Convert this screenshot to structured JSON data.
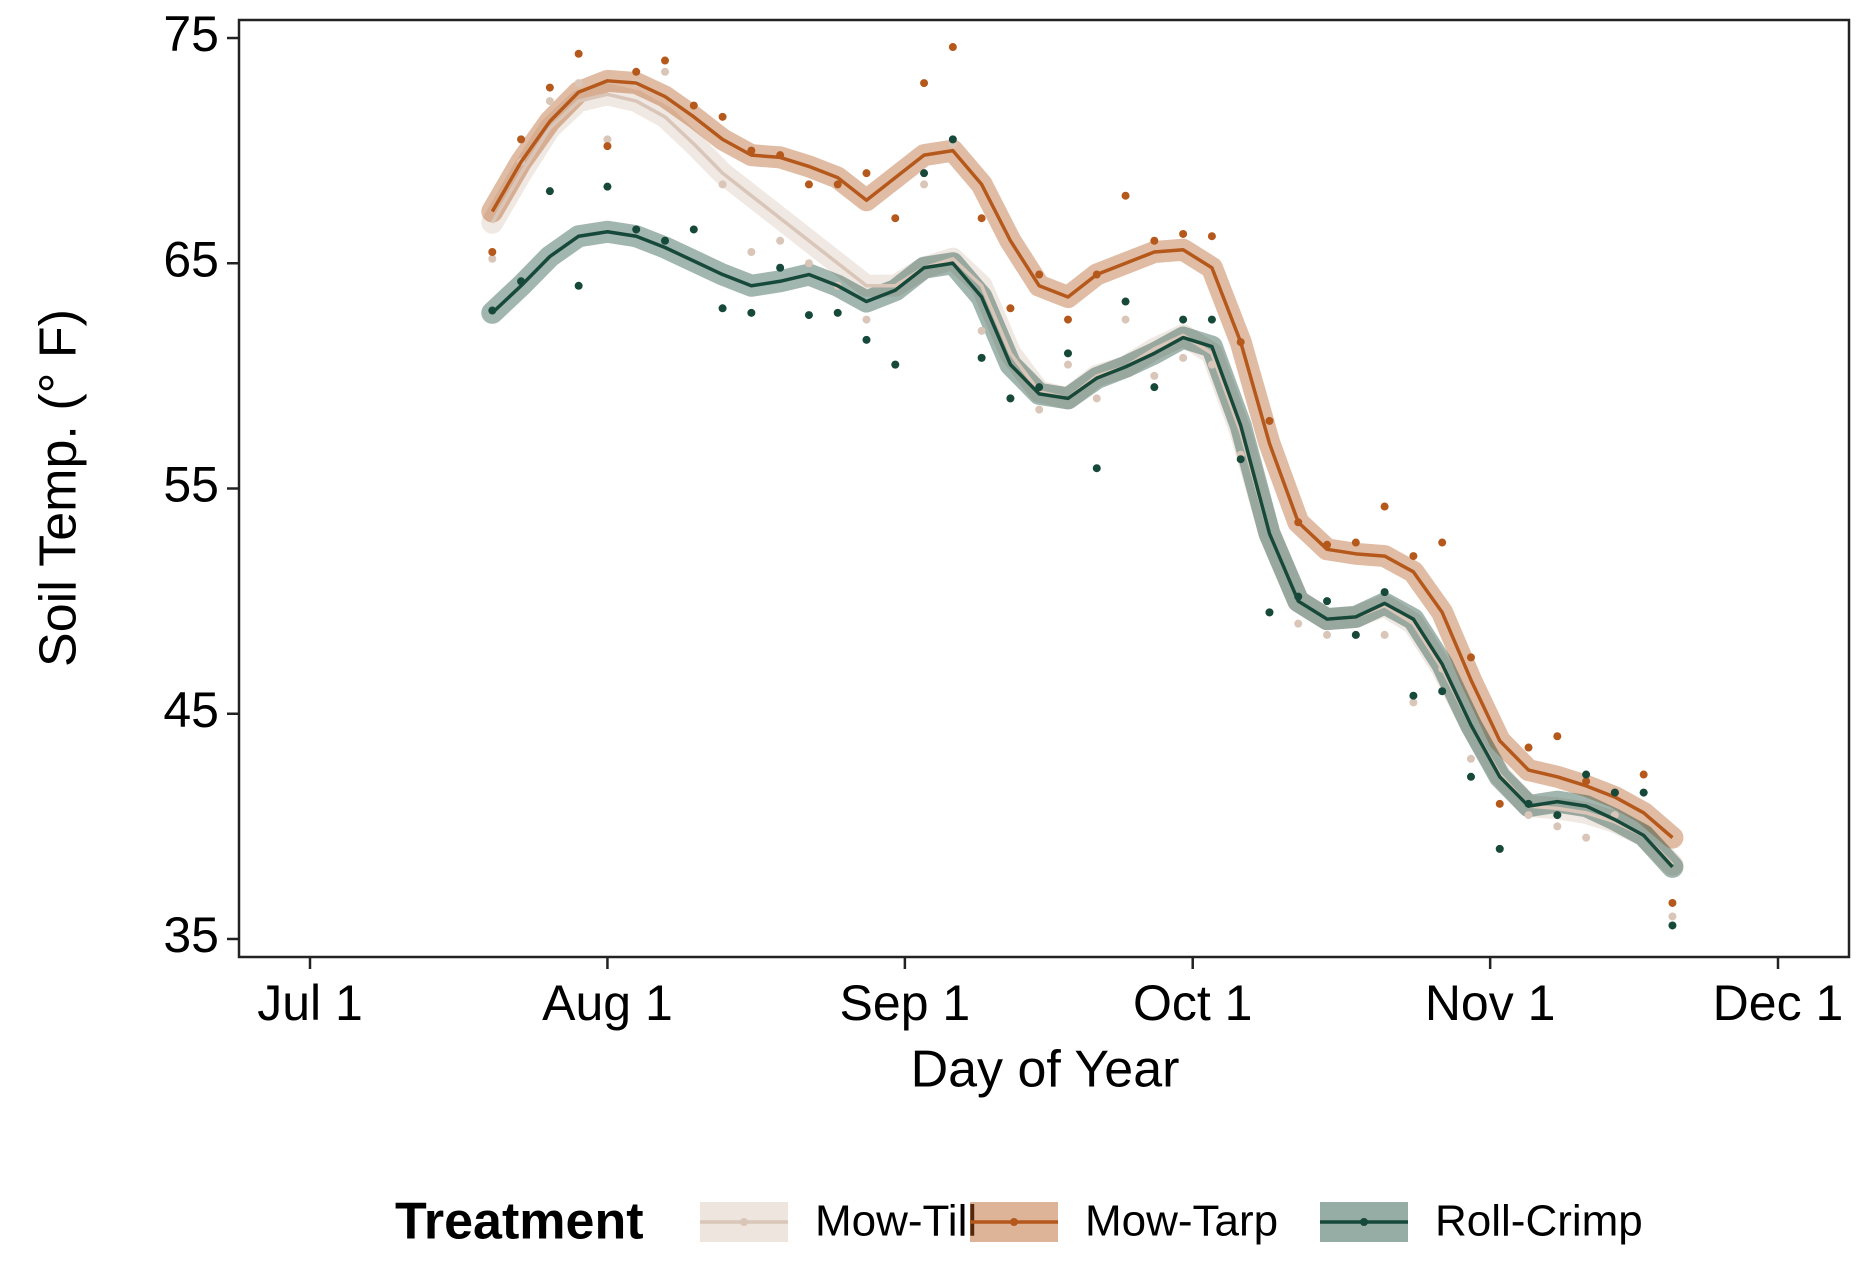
{
  "chart_data": {
    "type": "line",
    "xlabel": "Day of Year",
    "ylabel": "Soil Temp.  (° F)",
    "legend_title": "Treatment",
    "legend_position": "bottom",
    "xlim": [
      174.6,
      342.4
    ],
    "xticks": [
      {
        "value": 182,
        "label": "Jul 1"
      },
      {
        "value": 213,
        "label": "Aug 1"
      },
      {
        "value": 244,
        "label": "Sep 1"
      },
      {
        "value": 274,
        "label": "Oct 1"
      },
      {
        "value": 305,
        "label": "Nov 1"
      },
      {
        "value": 335,
        "label": "Dec 1"
      }
    ],
    "ylim": [
      34.2,
      75.8
    ],
    "yticks": [
      35,
      45,
      55,
      65,
      75
    ],
    "x": [
      201,
      204,
      207,
      210,
      213,
      216,
      219,
      222,
      225,
      228,
      231,
      234,
      237,
      240,
      243,
      246,
      249,
      252,
      255,
      258,
      261,
      264,
      267,
      270,
      273,
      276,
      279,
      282,
      285,
      288,
      291,
      294,
      297,
      300,
      303,
      306,
      309,
      312,
      315,
      318,
      321,
      324
    ],
    "series": [
      {
        "name": "Mow-Till",
        "color": "#d9c6b8",
        "values": [
          66.8,
          69,
          71,
          72.2,
          72.5,
          72.2,
          71.5,
          70.3,
          69,
          68,
          67,
          66,
          65,
          64,
          64,
          64.8,
          65.2,
          64,
          61,
          59.3,
          59,
          60,
          60.4,
          61.2,
          61.8,
          61,
          57.5,
          53,
          50,
          49.2,
          49.3,
          49.8,
          49,
          47,
          44.5,
          42.3,
          40.9,
          40.8,
          40.6,
          40.2,
          39.6,
          38.3
        ],
        "observed": [
          65.2,
          69.5,
          72.2,
          73,
          70.5,
          73,
          73.5,
          72,
          68.5,
          65.5,
          66,
          65,
          64,
          62.5,
          60.5,
          68.5,
          70.3,
          62,
          59,
          58.5,
          60.5,
          59,
          62.5,
          60,
          60.8,
          60.5,
          56.5,
          49.5,
          49,
          48.5,
          48.5,
          48.5,
          45.5,
          47,
          43,
          39,
          40.5,
          40,
          39.5,
          40.5,
          41.5,
          36
        ]
      },
      {
        "name": "Mow-Tarp",
        "color": "#b5581b",
        "values": [
          67.3,
          69.5,
          71.3,
          72.6,
          73.1,
          73,
          72.4,
          71.5,
          70.5,
          69.8,
          69.7,
          69.3,
          68.8,
          67.8,
          68.8,
          69.8,
          70,
          68.5,
          66,
          64,
          63.5,
          64.5,
          65,
          65.5,
          65.6,
          64.8,
          61.5,
          57,
          53.5,
          52.3,
          52.1,
          52,
          51.3,
          49.5,
          46.5,
          43.8,
          42.5,
          42.2,
          41.8,
          41.3,
          40.6,
          39.5
        ],
        "observed": [
          65.5,
          70.5,
          72.8,
          74.3,
          70.2,
          73.5,
          74,
          72,
          71.5,
          70,
          69.8,
          68.5,
          68.5,
          69,
          67,
          73,
          74.6,
          67,
          63,
          64.5,
          62.5,
          64.5,
          68,
          66,
          66.3,
          66.2,
          61.5,
          58,
          53.5,
          52.5,
          52.6,
          54.2,
          52,
          52.6,
          47.5,
          41,
          43.5,
          44,
          42,
          41.5,
          42.3,
          36.6
        ]
      },
      {
        "name": "Roll-Crimp",
        "color": "#17493a",
        "values": [
          62.8,
          64,
          65.3,
          66.2,
          66.4,
          66.2,
          65.7,
          65.1,
          64.5,
          64,
          64.2,
          64.5,
          64,
          63.3,
          63.8,
          64.8,
          65,
          63.5,
          60.5,
          59.2,
          59,
          59.9,
          60.4,
          61,
          61.7,
          61.3,
          57.8,
          53,
          50,
          49.2,
          49.3,
          49.9,
          49.2,
          47.2,
          44.5,
          42.2,
          40.9,
          41.1,
          40.9,
          40.3,
          39.6,
          38.2
        ],
        "observed": [
          62.9,
          64.2,
          68.2,
          64,
          68.4,
          66.5,
          66,
          66.5,
          63,
          62.8,
          64.8,
          62.7,
          62.8,
          61.6,
          60.5,
          69,
          70.5,
          60.8,
          59,
          59.5,
          61,
          55.9,
          63.3,
          59.5,
          62.5,
          62.5,
          56.3,
          49.5,
          50.2,
          50,
          48.5,
          50.4,
          45.8,
          46,
          42.2,
          39,
          41,
          40.5,
          42.3,
          41.5,
          41.5,
          35.6
        ]
      }
    ]
  }
}
